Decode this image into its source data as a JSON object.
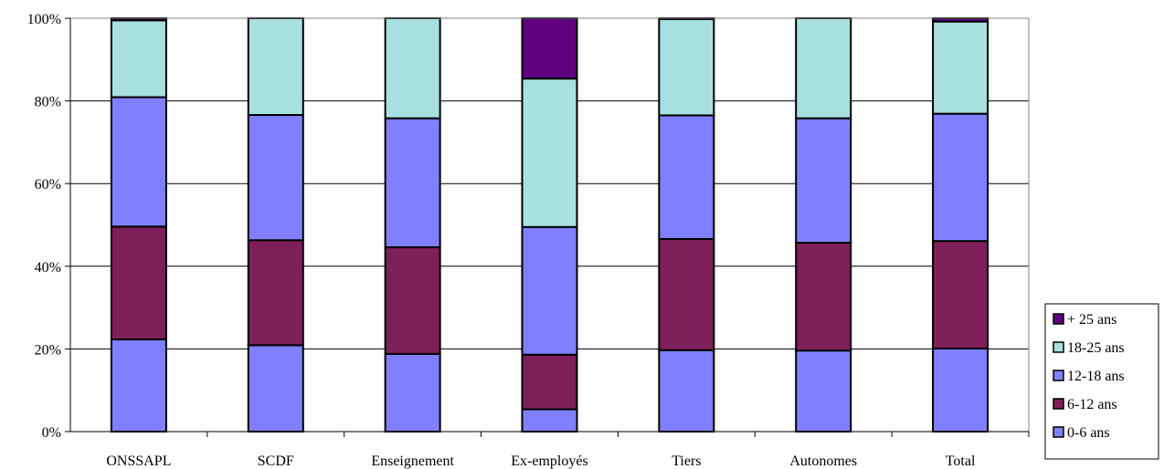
{
  "chart_data": {
    "type": "bar",
    "stacked": true,
    "percent": true,
    "categories": [
      "ONSSAPL",
      "SCDF",
      "Enseignement",
      "Ex-employés",
      "Tiers",
      "Autonomes",
      "Total"
    ],
    "series": [
      {
        "name": "0-6 ans",
        "color": "#8080ff",
        "values": [
          22.3,
          20.9,
          18.8,
          5.4,
          19.7,
          19.6,
          20.1
        ]
      },
      {
        "name": "6-12 ans",
        "color": "#7f1f5a",
        "values": [
          27.3,
          25.4,
          25.8,
          13.2,
          26.9,
          26.1,
          26.0
        ]
      },
      {
        "name": "12-18 ans",
        "color": "#8080ff",
        "values": [
          31.3,
          30.3,
          31.2,
          30.9,
          29.9,
          30.1,
          30.8
        ]
      },
      {
        "name": "18-25 ans",
        "color": "#a8e0e0",
        "values": [
          18.6,
          23.4,
          24.2,
          35.9,
          23.3,
          24.2,
          22.3
        ]
      },
      {
        "name": "+ 25 ans",
        "color": "#600080",
        "values": [
          0.5,
          0.0,
          0.0,
          14.6,
          0.2,
          0.0,
          0.8
        ]
      }
    ],
    "y_ticks": [
      "0%",
      "20%",
      "40%",
      "60%",
      "80%",
      "100%"
    ],
    "ylim": [
      0,
      100
    ],
    "grid": true,
    "legend_position": "bottom-right",
    "legend_order": [
      "+ 25 ans",
      "18-25 ans",
      "12-18 ans",
      "6-12 ans",
      "0-6 ans"
    ]
  }
}
